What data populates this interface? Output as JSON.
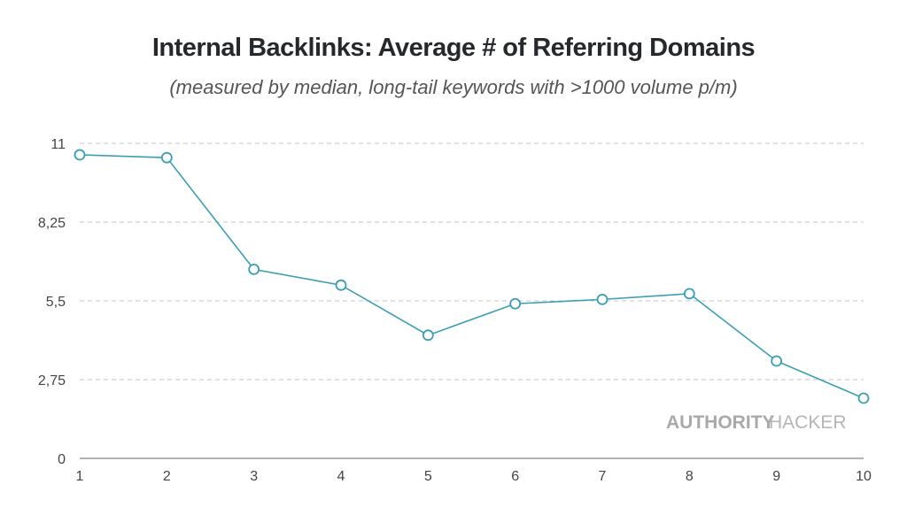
{
  "chart_data": {
    "type": "line",
    "title": "Internal Backlinks: Average # of Referring Domains",
    "subtitle": "(measured by median, long-tail keywords with >1000 volume p/m)",
    "xlabel": "",
    "ylabel": "",
    "x": [
      1,
      2,
      3,
      4,
      5,
      6,
      7,
      8,
      9,
      10
    ],
    "x_tick_labels": [
      "1",
      "2",
      "3",
      "4",
      "5",
      "6",
      "7",
      "8",
      "9",
      "10"
    ],
    "y_ticks": [
      0,
      2.75,
      5.5,
      8.25,
      11
    ],
    "y_tick_labels": [
      "0",
      "2,75",
      "5,5",
      "8,25",
      "11"
    ],
    "ylim": [
      0,
      11
    ],
    "grid": true,
    "series": [
      {
        "name": "Referring Domains",
        "values": [
          10.6,
          10.5,
          6.6,
          6.05,
          4.3,
          5.4,
          5.55,
          5.75,
          3.4,
          2.1
        ],
        "color": "#3a9fb3"
      }
    ],
    "watermark": {
      "bold": "AUTHORITY",
      "light": "HACKER"
    }
  }
}
